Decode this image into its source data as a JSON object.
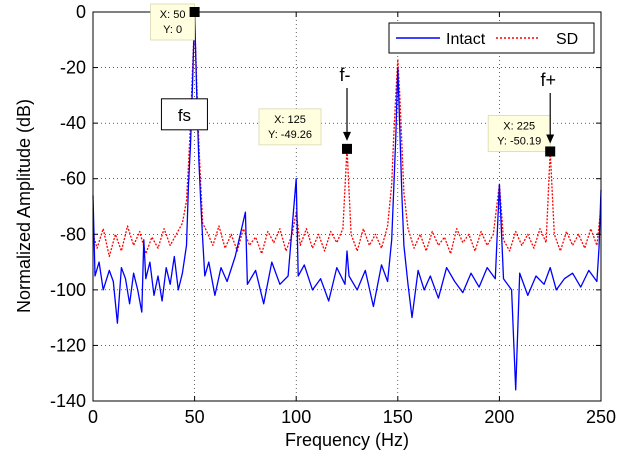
{
  "chart_data": {
    "type": "line",
    "title": "",
    "xlabel": "Frequency (Hz)",
    "ylabel": "Normalized Amplitude (dB)",
    "xlim": [
      0,
      250
    ],
    "ylim": [
      -140,
      0
    ],
    "xticks": [
      "0",
      "50",
      "100",
      "150",
      "200",
      "250"
    ],
    "yticks": [
      "0",
      "-20",
      "-40",
      "-60",
      "-80",
      "-100",
      "-120",
      "-140"
    ],
    "grid": true,
    "legend_position": "top-right",
    "series": [
      {
        "name": "Intact",
        "color": "#0000ff",
        "line_style": "solid",
        "x": [
          0,
          1,
          3,
          5,
          8,
          10,
          12,
          14,
          16,
          18,
          20,
          22,
          24,
          25,
          26,
          28,
          30,
          32,
          34,
          36,
          38,
          40,
          42,
          44,
          46,
          47,
          48,
          49,
          50,
          51,
          52,
          53,
          54,
          55,
          57,
          60,
          63,
          66,
          70,
          75,
          76,
          80,
          84,
          88,
          92,
          96,
          100,
          101,
          104,
          108,
          112,
          116,
          120,
          124,
          125,
          126,
          130,
          134,
          138,
          142,
          145,
          147,
          148,
          149,
          150,
          151,
          152,
          153,
          155,
          157,
          160,
          163,
          166,
          170,
          174,
          178,
          182,
          186,
          190,
          194,
          198,
          200,
          202,
          206,
          208,
          210,
          214,
          218,
          222,
          225,
          228,
          232,
          236,
          240,
          244,
          248,
          249,
          250
        ],
        "y": [
          -66,
          -95,
          -90,
          -100,
          -93,
          -97,
          -112,
          -92,
          -96,
          -105,
          -94,
          -100,
          -108,
          -82,
          -96,
          -90,
          -102,
          -95,
          -104,
          -92,
          -98,
          -88,
          -100,
          -94,
          -84,
          -62,
          -48,
          -25,
          0,
          -28,
          -52,
          -68,
          -82,
          -95,
          -90,
          -102,
          -92,
          -97,
          -88,
          -72,
          -98,
          -93,
          -105,
          -90,
          -98,
          -95,
          -60,
          -95,
          -91,
          -100,
          -96,
          -104,
          -92,
          -98,
          -86,
          -95,
          -100,
          -93,
          -106,
          -91,
          -97,
          -82,
          -64,
          -45,
          -20,
          -42,
          -66,
          -84,
          -98,
          -110,
          -93,
          -100,
          -95,
          -103,
          -92,
          -97,
          -101,
          -94,
          -99,
          -92,
          -96,
          -62,
          -96,
          -100,
          -136,
          -94,
          -102,
          -95,
          -98,
          -92,
          -100,
          -96,
          -94,
          -99,
          -93,
          -97,
          -85,
          -64
        ]
      },
      {
        "name": "SD",
        "color": "#ff0000",
        "line_style": "dotted",
        "x": [
          0,
          2,
          5,
          8,
          11,
          14,
          17,
          20,
          23,
          26,
          29,
          32,
          35,
          38,
          41,
          44,
          46,
          47,
          48,
          49,
          50,
          51,
          52,
          53,
          54,
          56,
          59,
          62,
          65,
          68,
          71,
          74,
          77,
          80,
          83,
          86,
          89,
          92,
          95,
          98,
          100,
          102,
          105,
          108,
          111,
          114,
          117,
          120,
          123,
          125,
          127,
          130,
          133,
          136,
          139,
          142,
          145,
          147,
          148,
          149,
          150,
          151,
          152,
          153,
          155,
          158,
          161,
          164,
          167,
          170,
          173,
          176,
          179,
          182,
          185,
          188,
          191,
          194,
          197,
          200,
          202,
          205,
          208,
          211,
          214,
          217,
          220,
          223,
          225,
          227,
          230,
          233,
          236,
          239,
          242,
          245,
          248,
          250
        ],
        "y": [
          -80,
          -85,
          -78,
          -88,
          -80,
          -86,
          -77,
          -84,
          -79,
          -87,
          -81,
          -85,
          -78,
          -84,
          -80,
          -76,
          -68,
          -55,
          -40,
          -20,
          -2,
          -24,
          -46,
          -62,
          -76,
          -79,
          -84,
          -77,
          -85,
          -80,
          -86,
          -78,
          -84,
          -81,
          -87,
          -79,
          -83,
          -78,
          -86,
          -80,
          -72,
          -84,
          -78,
          -85,
          -80,
          -86,
          -79,
          -83,
          -78,
          -49,
          -80,
          -86,
          -78,
          -84,
          -80,
          -85,
          -77,
          -62,
          -45,
          -30,
          -17,
          -30,
          -48,
          -65,
          -78,
          -85,
          -80,
          -86,
          -79,
          -84,
          -81,
          -87,
          -78,
          -83,
          -80,
          -86,
          -79,
          -84,
          -80,
          -62,
          -82,
          -86,
          -79,
          -84,
          -80,
          -85,
          -78,
          -83,
          -50,
          -80,
          -86,
          -79,
          -84,
          -80,
          -85,
          -78,
          -84,
          -70
        ]
      }
    ],
    "datatips": [
      {
        "x": 50,
        "y": 0,
        "line1": "X: 50",
        "line2": "Y: 0"
      },
      {
        "x": 125,
        "y": -49.26,
        "line1": "X: 125",
        "line2": "Y: -49.26"
      },
      {
        "x": 225,
        "y": -50.19,
        "line1": "X: 225",
        "line2": "Y: -50.19"
      }
    ],
    "annotations": {
      "fs": "fs",
      "f_minus": "f-",
      "f_plus": "f+"
    }
  }
}
